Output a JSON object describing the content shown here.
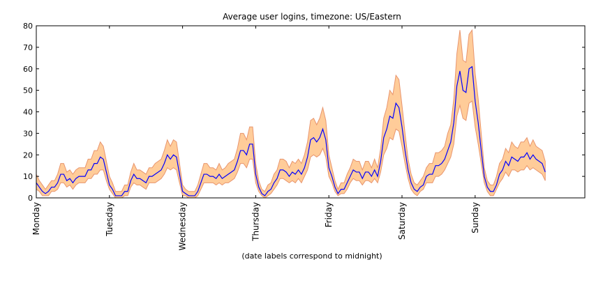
{
  "chart_data": {
    "type": "line",
    "title": "Average user logins, timezone: US/Eastern",
    "x_label": "(date labels correspond to midnight)",
    "x": [
      0,
      1,
      2,
      3,
      4,
      5,
      6,
      7,
      8,
      9,
      10,
      11,
      12,
      13,
      14,
      15,
      16,
      17,
      18,
      19,
      20,
      21,
      22,
      23,
      24,
      25,
      26,
      27,
      28,
      29,
      30,
      31,
      32,
      33,
      34,
      35,
      36,
      37,
      38,
      39,
      40,
      41,
      42,
      43,
      44,
      45,
      46,
      47,
      48,
      49,
      50,
      51,
      52,
      53,
      54,
      55,
      56,
      57,
      58,
      59,
      60,
      61,
      62,
      63,
      64,
      65,
      66,
      67,
      68,
      69,
      70,
      71,
      72,
      73,
      74,
      75,
      76,
      77,
      78,
      79,
      80,
      81,
      82,
      83,
      84,
      85,
      86,
      87,
      88,
      89,
      90,
      91,
      92,
      93,
      94,
      95,
      96,
      97,
      98,
      99,
      100,
      101,
      102,
      103,
      104,
      105,
      106,
      107,
      108,
      109,
      110,
      111,
      112,
      113,
      114,
      115,
      116,
      117,
      118,
      119,
      120,
      121,
      122,
      123,
      124,
      125,
      126,
      127,
      128,
      129,
      130,
      131,
      132,
      133,
      134,
      135,
      136,
      137,
      138,
      139,
      140,
      141,
      142,
      143,
      144,
      145,
      146,
      147,
      148,
      149,
      150,
      151,
      152,
      153,
      154,
      155,
      156,
      157,
      158,
      159,
      160,
      161,
      162,
      163,
      164,
      165,
      166,
      167
    ],
    "values": [
      7,
      5,
      3,
      2,
      3,
      5,
      5,
      7,
      11,
      11,
      8,
      9,
      7,
      9,
      10,
      10,
      10,
      13,
      13,
      16,
      16,
      19,
      18,
      12,
      6,
      4,
      1,
      1,
      1,
      3,
      3,
      8,
      11,
      9,
      9,
      8,
      7,
      10,
      10,
      11,
      12,
      13,
      16,
      20,
      18,
      20,
      19,
      11,
      3,
      2,
      1,
      1,
      1,
      3,
      7,
      11,
      11,
      10,
      10,
      9,
      11,
      9,
      10,
      11,
      12,
      13,
      17,
      22,
      22,
      20,
      25,
      25,
      11,
      5,
      2,
      1,
      3,
      4,
      7,
      9,
      13,
      13,
      12,
      10,
      12,
      11,
      13,
      11,
      14,
      19,
      27,
      28,
      26,
      28,
      32,
      27,
      14,
      10,
      5,
      2,
      4,
      4,
      7,
      10,
      13,
      12,
      12,
      9,
      12,
      12,
      10,
      13,
      10,
      17,
      28,
      32,
      38,
      37,
      44,
      42,
      33,
      22,
      13,
      7,
      4,
      3,
      5,
      6,
      10,
      11,
      11,
      15,
      15,
      16,
      18,
      22,
      26,
      35,
      52,
      59,
      50,
      49,
      60,
      61,
      45,
      35,
      22,
      10,
      5,
      3,
      3,
      6,
      11,
      13,
      17,
      15,
      19,
      18,
      17,
      19,
      19,
      21,
      18,
      20,
      18,
      17,
      16,
      12
    ],
    "upper": [
      11,
      8,
      6,
      4,
      6,
      8,
      8,
      11,
      16,
      16,
      12,
      13,
      11,
      13,
      14,
      14,
      14,
      18,
      18,
      22,
      22,
      26,
      24,
      17,
      10,
      7,
      3,
      3,
      3,
      6,
      6,
      12,
      16,
      13,
      13,
      12,
      11,
      14,
      14,
      16,
      17,
      18,
      22,
      27,
      24,
      27,
      26,
      16,
      6,
      4,
      3,
      3,
      3,
      6,
      11,
      16,
      16,
      14,
      14,
      13,
      16,
      13,
      14,
      16,
      17,
      18,
      23,
      30,
      30,
      27,
      33,
      33,
      16,
      8,
      4,
      3,
      6,
      7,
      11,
      13,
      18,
      18,
      17,
      14,
      17,
      16,
      18,
      16,
      20,
      26,
      36,
      37,
      34,
      37,
      42,
      36,
      20,
      14,
      8,
      4,
      7,
      7,
      11,
      14,
      18,
      17,
      17,
      13,
      17,
      17,
      14,
      18,
      14,
      23,
      37,
      42,
      50,
      48,
      57,
      55,
      43,
      30,
      18,
      11,
      7,
      6,
      8,
      10,
      14,
      16,
      16,
      21,
      21,
      22,
      24,
      30,
      34,
      46,
      67,
      78,
      64,
      63,
      76,
      78,
      58,
      46,
      30,
      14,
      8,
      6,
      6,
      10,
      16,
      18,
      23,
      21,
      26,
      24,
      23,
      26,
      26,
      28,
      24,
      27,
      24,
      23,
      22,
      17
    ],
    "lower": [
      4,
      3,
      1,
      1,
      1,
      3,
      3,
      4,
      7,
      7,
      5,
      6,
      4,
      6,
      7,
      7,
      7,
      9,
      9,
      11,
      11,
      13,
      13,
      8,
      4,
      2,
      0,
      0,
      0,
      1,
      1,
      5,
      7,
      6,
      6,
      5,
      4,
      7,
      7,
      7,
      8,
      9,
      11,
      14,
      13,
      14,
      13,
      7,
      1,
      1,
      0,
      0,
      0,
      1,
      4,
      7,
      7,
      7,
      7,
      6,
      7,
      6,
      7,
      7,
      8,
      9,
      12,
      16,
      16,
      14,
      18,
      18,
      7,
      3,
      1,
      0,
      1,
      2,
      4,
      6,
      9,
      9,
      8,
      7,
      8,
      7,
      9,
      7,
      10,
      13,
      19,
      20,
      19,
      20,
      23,
      19,
      10,
      7,
      3,
      1,
      2,
      2,
      4,
      7,
      9,
      8,
      8,
      6,
      8,
      8,
      7,
      9,
      7,
      12,
      20,
      23,
      28,
      27,
      32,
      31,
      24,
      16,
      9,
      4,
      2,
      1,
      3,
      4,
      7,
      7,
      7,
      10,
      10,
      11,
      13,
      16,
      19,
      25,
      38,
      43,
      37,
      36,
      44,
      45,
      33,
      25,
      16,
      7,
      3,
      1,
      1,
      4,
      7,
      9,
      12,
      10,
      13,
      13,
      12,
      13,
      13,
      15,
      13,
      14,
      13,
      12,
      11,
      8
    ],
    "color": "#0000ff",
    "band_color": "#ffcc99",
    "band_edge": "#e8956e",
    "xlim": [
      0,
      180
    ],
    "xticks": [
      {
        "value": 0,
        "label": "Monday"
      },
      {
        "value": 24,
        "label": "Tuesday"
      },
      {
        "value": 48,
        "label": "Wednesday"
      },
      {
        "value": 72,
        "label": "Thursday"
      },
      {
        "value": 96,
        "label": "Friday"
      },
      {
        "value": 120,
        "label": "Saturday"
      },
      {
        "value": 144,
        "label": "Sunday"
      }
    ],
    "ylim": [
      0,
      80
    ],
    "yticks": [
      0,
      10,
      20,
      30,
      40,
      50,
      60,
      70,
      80
    ],
    "grid": false
  }
}
